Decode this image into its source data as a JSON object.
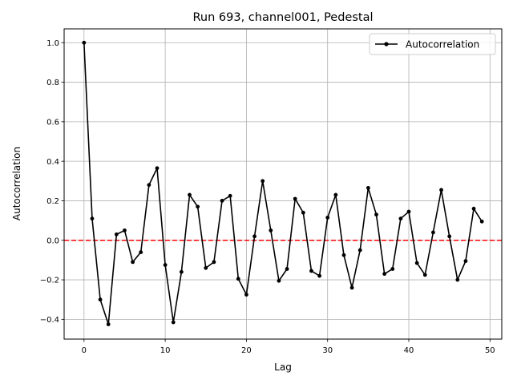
{
  "chart_data": {
    "type": "line",
    "title": "Run 693, channel001, Pedestal",
    "xlabel": "Lag",
    "ylabel": "Autocorrelation",
    "xlim": [
      -2.45,
      51.45
    ],
    "ylim": [
      -0.5,
      1.07
    ],
    "x_ticks": [
      0,
      10,
      20,
      30,
      40,
      50
    ],
    "y_ticks": [
      -0.4,
      -0.2,
      0.0,
      0.2,
      0.4,
      0.6,
      0.8,
      1.0
    ],
    "x_tick_labels": [
      "0",
      "10",
      "20",
      "30",
      "40",
      "50"
    ],
    "y_tick_labels": [
      "−0.4",
      "−0.2",
      "0.0",
      "0.2",
      "0.4",
      "0.6",
      "0.8",
      "1.0"
    ],
    "grid": true,
    "legend": {
      "position": "top-right",
      "entries": [
        "Autocorrelation"
      ]
    },
    "series": [
      {
        "name": "Autocorrelation",
        "color": "#000000",
        "marker": "circle",
        "x": [
          0,
          1,
          2,
          3,
          4,
          5,
          6,
          7,
          8,
          9,
          10,
          11,
          12,
          13,
          14,
          15,
          16,
          17,
          18,
          19,
          20,
          21,
          22,
          23,
          24,
          25,
          26,
          27,
          28,
          29,
          30,
          31,
          32,
          33,
          34,
          35,
          36,
          37,
          38,
          39,
          40,
          41,
          42,
          43,
          44,
          45,
          46,
          47,
          48,
          49
        ],
        "values": [
          1.0,
          0.11,
          -0.3,
          -0.425,
          0.03,
          0.05,
          -0.11,
          -0.06,
          0.28,
          0.365,
          -0.125,
          -0.415,
          -0.16,
          0.23,
          0.17,
          -0.14,
          -0.11,
          0.2,
          0.225,
          -0.195,
          -0.275,
          0.02,
          0.3,
          0.05,
          -0.205,
          -0.145,
          0.21,
          0.14,
          -0.155,
          -0.18,
          0.115,
          0.23,
          -0.075,
          -0.24,
          -0.05,
          0.265,
          0.13,
          -0.17,
          -0.145,
          0.11,
          0.145,
          -0.115,
          -0.175,
          0.04,
          0.255,
          0.02,
          -0.2,
          -0.105,
          0.16,
          0.095
        ]
      }
    ],
    "reference_line": {
      "y": 0.0,
      "color": "#ff0000",
      "style": "dashed"
    }
  }
}
